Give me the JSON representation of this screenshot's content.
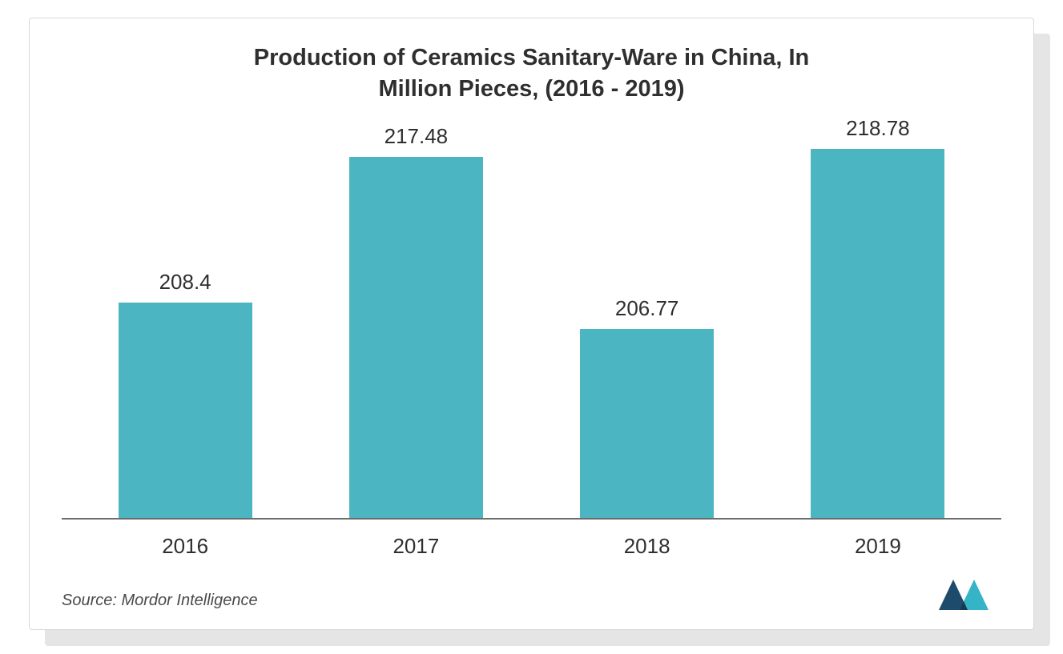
{
  "chart": {
    "type": "bar",
    "title_line1": "Production of Ceramics Sanitary-Ware in China, In",
    "title_line2": "Million Pieces, (2016 - 2019)",
    "title_fontsize": 29,
    "title_color": "#2f2f2f",
    "categories": [
      "2016",
      "2017",
      "2018",
      "2019"
    ],
    "values": [
      208.4,
      217.48,
      206.77,
      218.78
    ],
    "value_labels": [
      "208.4",
      "217.48",
      "206.77",
      "218.78"
    ],
    "bar_color": "#4bb6c1",
    "label_fontsize": 26,
    "xtick_fontsize": 26,
    "ylim": [
      195,
      220
    ],
    "axis_line_color": "#6c6c6c",
    "background_color": "#ffffff",
    "border_color": "#d9d9d9",
    "shadow_color": "rgba(0,0,0,0.10)",
    "bar_width_pct": 58
  },
  "footer": {
    "source": "Source: Mordor Intelligence",
    "source_fontsize": 20,
    "logo_colors": [
      "#1e4b6b",
      "#35b4c8"
    ]
  }
}
